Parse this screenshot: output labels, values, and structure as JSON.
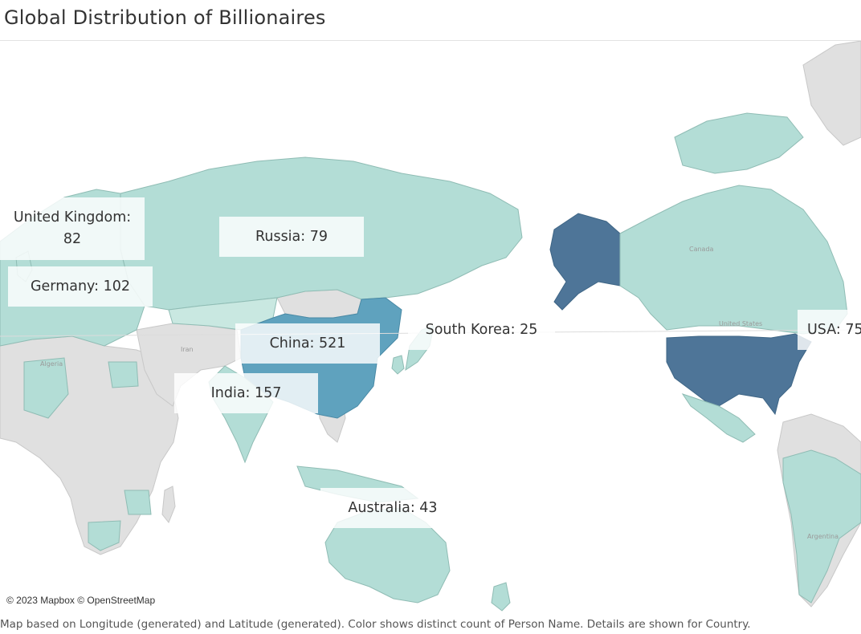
{
  "title": "Global Distribution of Billionaires",
  "attribution": "© 2023 Mapbox © OpenStreetMap",
  "caption": "Map based on Longitude (generated) and Latitude (generated).  Color shows distinct count of Person Name.  Details are shown for Country.",
  "colors": {
    "ocean": "#ffffff",
    "no_data_land": "#e0e0e0",
    "low": "#b3ddd6",
    "mid": "#5fa2be",
    "high": "#4e7598",
    "border": "#8c8c8c"
  },
  "countries": [
    {
      "name": "China",
      "value": 521,
      "label_text": "China: 521"
    },
    {
      "name": "India",
      "value": 157,
      "label_text": "India: 157"
    },
    {
      "name": "Germany",
      "value": 102,
      "label_text": "Germany: 102"
    },
    {
      "name": "United Kingdom",
      "value": 82,
      "label_line1": "United Kingdom:",
      "label_line2": "82"
    },
    {
      "name": "Russia",
      "value": 79,
      "label_text": "Russia: 79"
    },
    {
      "name": "USA",
      "value": 75,
      "label_text": "USA: 75"
    },
    {
      "name": "Australia",
      "value": 43,
      "label_text": "Australia: 43"
    },
    {
      "name": "South Korea",
      "value": 25,
      "label_text": "South Korea: 25"
    }
  ],
  "basemap_labels": {
    "iran": "Iran",
    "algeria": "Algeria",
    "canada": "Canada",
    "united_states": "United States",
    "argentina": "Argentina"
  }
}
